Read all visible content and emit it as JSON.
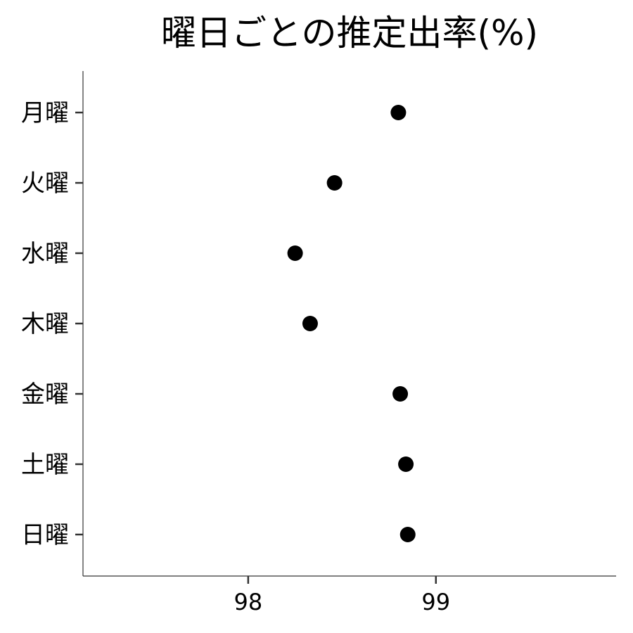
{
  "chart_data": {
    "type": "scatter",
    "title": "曜日ごとの推定出率(%)",
    "xlabel": "",
    "ylabel": "",
    "categories": [
      "月曜",
      "火曜",
      "水曜",
      "木曜",
      "金曜",
      "土曜",
      "日曜"
    ],
    "values": [
      98.8,
      98.46,
      98.25,
      98.33,
      98.81,
      98.84,
      98.85
    ],
    "x_ticks": [
      98,
      99
    ],
    "xlim": [
      97.12,
      99.96
    ],
    "grid": false,
    "legend": "none",
    "point_color": "#000000",
    "axis_color": "#333333"
  }
}
